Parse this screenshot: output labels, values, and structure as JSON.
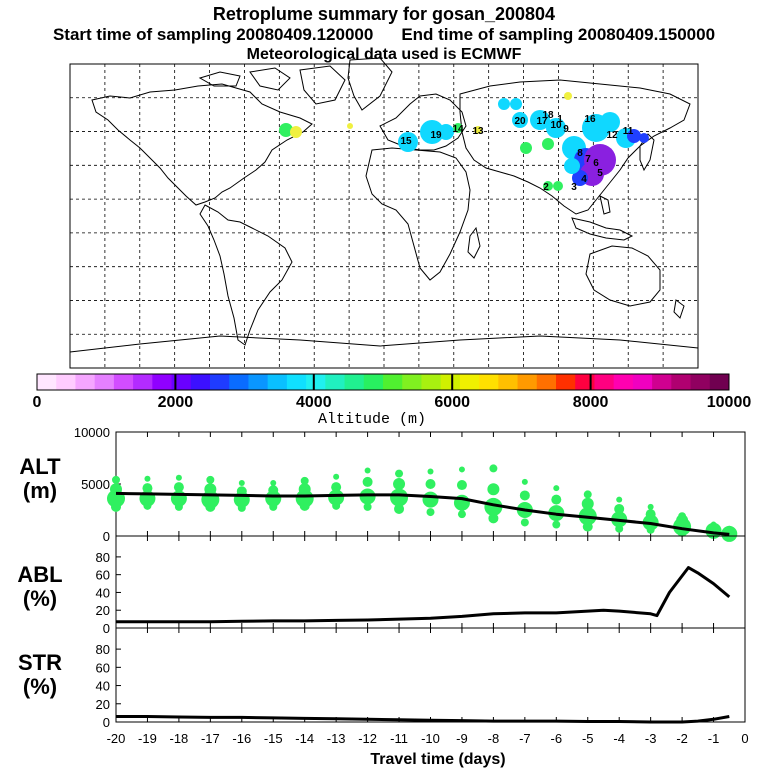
{
  "header": {
    "title": "Retroplume summary for gosan_200804",
    "start_label": "Start time of sampling 20080409.120000",
    "end_label": "End time of sampling 20080409.150000",
    "met_label": "Meteorological data used is ECMWF"
  },
  "colorbar": {
    "ticks": [
      "0",
      "2000",
      "4000",
      "6000",
      "8000",
      "10000"
    ],
    "label": "Altitude (m)",
    "colors": [
      "#ffe6ff",
      "#ffccff",
      "#f5a6ff",
      "#e580ff",
      "#d24dff",
      "#b32bff",
      "#9000ff",
      "#6a00ff",
      "#3c10ff",
      "#1f3cff",
      "#0a6cff",
      "#0a96ff",
      "#0ac0ff",
      "#10e0ff",
      "#20f0f0",
      "#20f0c0",
      "#20f090",
      "#28f060",
      "#50f030",
      "#80f020",
      "#a8f010",
      "#d0f000",
      "#f0f000",
      "#ffe000",
      "#ffc000",
      "#ff9a00",
      "#ff7000",
      "#ff3000",
      "#ff0040",
      "#ff0080",
      "#ff00b0",
      "#f000c0",
      "#d00090",
      "#b00070",
      "#900060",
      "#700050"
    ]
  },
  "map": {
    "labels": [
      "20",
      "18",
      "17",
      "15",
      "19",
      "16",
      "14",
      "13",
      "12",
      "11",
      "10",
      "9",
      "8",
      "7",
      "6",
      "5",
      "4",
      "3",
      "2",
      "1"
    ],
    "colors": {
      "cyan": "#10d8ff",
      "green": "#30f060",
      "purple": "#8a20e0",
      "blue": "#2040ff",
      "yellow": "#f0f040"
    }
  },
  "chart_data": [
    {
      "type": "line",
      "panel": "ALT",
      "ylabel": "ALT\n(m)",
      "ylabel_lines": [
        "ALT",
        "(m)"
      ],
      "ylim": [
        0,
        10000
      ],
      "yticks": [
        "0",
        "5000",
        "10000"
      ],
      "x": [
        -20,
        -19,
        -18,
        -17,
        -16,
        -15,
        -14,
        -13,
        -12,
        -11,
        -10,
        -9,
        -8,
        -7,
        -6,
        -5,
        -4,
        -3,
        -2,
        -1,
        -0.5
      ],
      "series": [
        {
          "name": "mean altitude",
          "values": [
            4100,
            4050,
            4000,
            3950,
            3900,
            3850,
            3850,
            3900,
            3950,
            3950,
            3800,
            3600,
            3000,
            2500,
            2100,
            1800,
            1500,
            1200,
            700,
            300,
            150
          ]
        }
      ],
      "scatter_layers": [
        {
          "values": [
            5400,
            5500,
            5600,
            5400,
            5100,
            5100,
            5300,
            5700,
            6300,
            6000,
            6200,
            6400,
            6500,
            5200,
            4600,
            4000,
            3500,
            2800,
            1900,
            1100,
            700
          ]
        },
        {
          "values": [
            4500,
            4600,
            4700,
            4500,
            4300,
            4400,
            4500,
            4700,
            5200,
            5000,
            5000,
            4900,
            4500,
            3900,
            3500,
            3100,
            2600,
            2100,
            1500,
            800,
            400
          ]
        },
        {
          "values": [
            3600,
            3600,
            3600,
            3500,
            3500,
            3600,
            3600,
            3700,
            3800,
            3700,
            3500,
            3200,
            2800,
            2500,
            2200,
            1900,
            1600,
            1300,
            900,
            500,
            200
          ]
        },
        {
          "values": [
            2800,
            2900,
            2800,
            2800,
            2700,
            2800,
            2900,
            2900,
            2800,
            2600,
            2300,
            2100,
            1700,
            1300,
            1100,
            900,
            700,
            600,
            400,
            200,
            100
          ]
        }
      ]
    },
    {
      "type": "line",
      "panel": "ABL",
      "ylabel": "ABL\n(%)",
      "ylabel_lines": [
        "ABL",
        "(%)"
      ],
      "ylim": [
        0,
        90
      ],
      "yticks": [
        "0",
        "20",
        "40",
        "60",
        "80"
      ],
      "x": [
        -20,
        -19,
        -18,
        -17,
        -16,
        -15,
        -14,
        -13,
        -12,
        -11,
        -10,
        -9,
        -8,
        -7,
        -6,
        -5,
        -4.5,
        -4,
        -3,
        -2.8,
        -2.4,
        -1.8,
        -1.5,
        -1,
        -0.5
      ],
      "series": [
        {
          "name": "ABL fraction",
          "values": [
            7,
            7,
            7,
            7,
            7.5,
            8,
            8,
            8.5,
            9,
            10,
            11,
            13,
            16,
            17,
            17,
            19,
            20,
            19,
            16,
            14,
            40,
            68,
            62,
            50,
            35
          ]
        }
      ]
    },
    {
      "type": "line",
      "panel": "STR",
      "ylabel": "STR\n(%)",
      "ylabel_lines": [
        "STR",
        "(%)"
      ],
      "ylim": [
        0,
        90
      ],
      "yticks": [
        "0",
        "20",
        "40",
        "60",
        "80"
      ],
      "xlabel": "Travel time (days)",
      "xticks": [
        "-20",
        "-19",
        "-18",
        "-17",
        "-16",
        "-15",
        "-14",
        "-13",
        "-12",
        "-11",
        "-10",
        "-9",
        "-8",
        "-7",
        "-6",
        "-5",
        "-4",
        "-3",
        "-2",
        "-1",
        "0"
      ],
      "x": [
        -20,
        -19,
        -18,
        -17,
        -16,
        -15,
        -14,
        -13,
        -12,
        -11,
        -10,
        -9,
        -8,
        -7,
        -6,
        -5,
        -4,
        -3,
        -2,
        -1.5,
        -1,
        -0.5
      ],
      "series": [
        {
          "name": "stratospheric fraction",
          "values": [
            6,
            6,
            5.5,
            5,
            5,
            4.5,
            4,
            3.5,
            3,
            2.5,
            2,
            1.5,
            1,
            1,
            1,
            0.5,
            0.5,
            0,
            0,
            1,
            3,
            6
          ]
        }
      ]
    }
  ]
}
